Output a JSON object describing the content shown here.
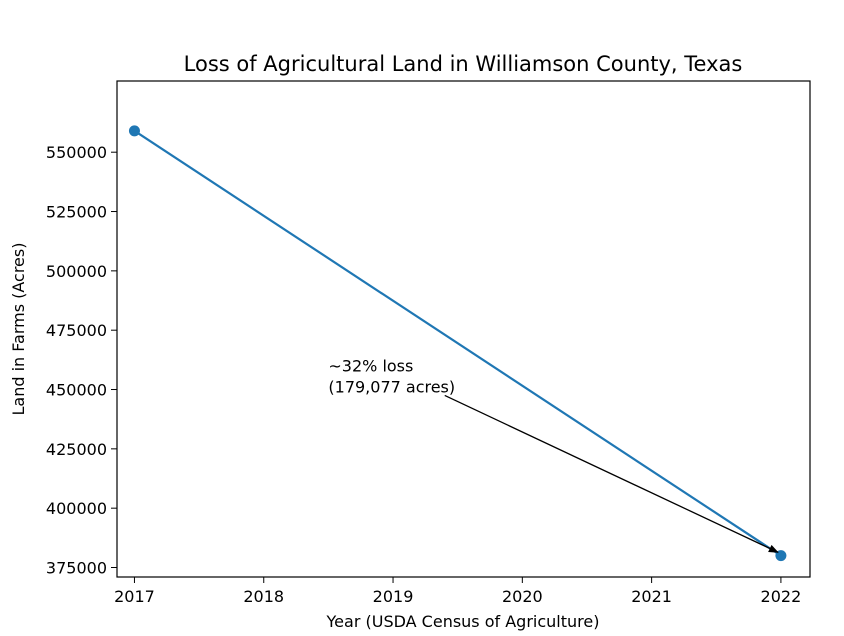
{
  "chart_data": {
    "type": "line",
    "title": "Loss of Agricultural Land in Williamson County, Texas",
    "xlabel": "Year (USDA Census of Agriculture)",
    "ylabel": "Land in Farms (Acres)",
    "xlim": [
      2016.865,
      2022.225
    ],
    "ylim": [
      371000,
      580000
    ],
    "x_ticks": [
      2017,
      2018,
      2019,
      2020,
      2021,
      2022
    ],
    "x_tick_labels": [
      "2017",
      "2018",
      "2019",
      "2020",
      "2021",
      "2022"
    ],
    "y_ticks": [
      375000,
      400000,
      425000,
      450000,
      475000,
      500000,
      525000,
      550000
    ],
    "y_tick_labels": [
      "375000",
      "400000",
      "425000",
      "450000",
      "475000",
      "500000",
      "525000",
      "550000"
    ],
    "grid": false,
    "series": [
      {
        "color": "#1f77b4",
        "marker": "circle",
        "x": [
          2017,
          2022
        ],
        "y": [
          559000,
          380000
        ]
      }
    ],
    "annotations": [
      {
        "lines": [
          "~32% loss",
          "(179,077 acres)"
        ],
        "text_at": [
          2018.5,
          450000
        ],
        "arrow_from": [
          2019.4,
          447500
        ],
        "arrow_to": [
          2022,
          381000
        ]
      }
    ]
  }
}
